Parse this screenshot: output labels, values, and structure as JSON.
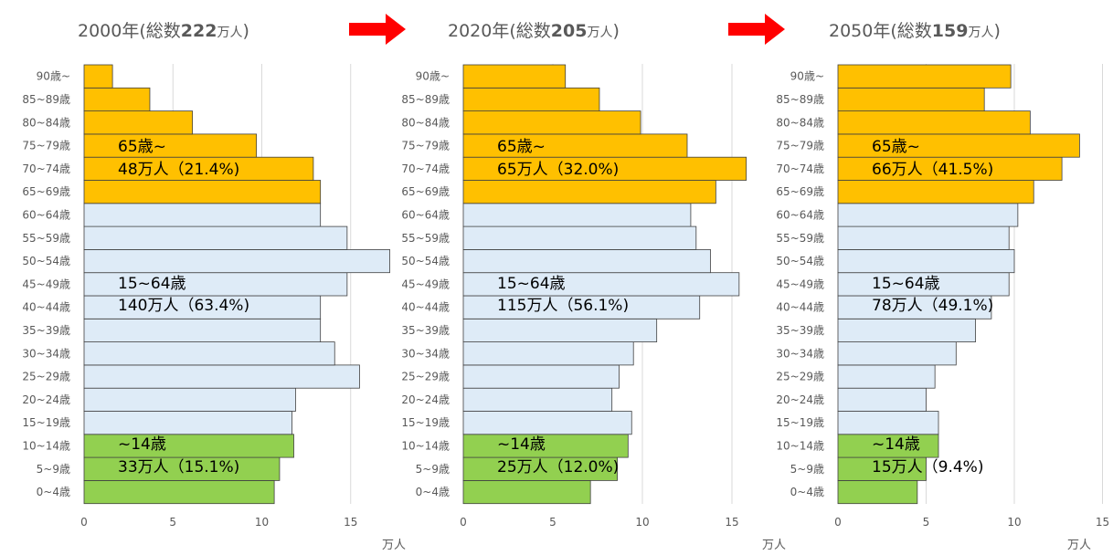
{
  "colors": {
    "elderly": "#ffc000",
    "working": "#deebf7",
    "child": "#92d050",
    "grid": "#d9d9d9",
    "arrow": "#ff0000",
    "bar_border": "#404040"
  },
  "arrow_icon": "right-arrow-icon",
  "chart_data": [
    {
      "type": "bar",
      "orientation": "horizontal",
      "title_prefix": "2000年(総数",
      "title_value": "222",
      "title_suffix_small": "万人",
      "title_suffix": ")",
      "unit_label": "万人",
      "categories": [
        "0~4歳",
        "5~9歳",
        "10~14歳",
        "15~19歳",
        "20~24歳",
        "25~29歳",
        "30~34歳",
        "35~39歳",
        "40~44歳",
        "45~49歳",
        "50~54歳",
        "55~59歳",
        "60~64歳",
        "65~69歳",
        "70~74歳",
        "75~79歳",
        "80~84歳",
        "85~89歳",
        "90歳~"
      ],
      "values": [
        10.7,
        11.0,
        11.8,
        11.7,
        11.9,
        15.5,
        14.1,
        13.3,
        13.3,
        14.8,
        17.2,
        14.8,
        13.3,
        13.3,
        12.9,
        9.7,
        6.1,
        3.7,
        1.6
      ],
      "groups": [
        "child",
        "child",
        "child",
        "working",
        "working",
        "working",
        "working",
        "working",
        "working",
        "working",
        "working",
        "working",
        "working",
        "elderly",
        "elderly",
        "elderly",
        "elderly",
        "elderly",
        "elderly"
      ],
      "xlim": [
        0,
        17
      ],
      "xticks": [
        0,
        5,
        10,
        15
      ],
      "grid": true,
      "annotations": {
        "elderly_label": "65歳~",
        "elderly_value": "48万人（21.4%)",
        "working_label": "15~64歳",
        "working_value": "140万人（63.4%)",
        "child_label": "~14歳",
        "child_value": "33万人（15.1%)"
      }
    },
    {
      "type": "bar",
      "orientation": "horizontal",
      "title_prefix": "2020年(総数",
      "title_value": "205",
      "title_suffix_small": "万人",
      "title_suffix": ")",
      "unit_label": "万人",
      "categories": [
        "0~4歳",
        "5~9歳",
        "10~14歳",
        "15~19歳",
        "20~24歳",
        "25~29歳",
        "30~34歳",
        "35~39歳",
        "40~44歳",
        "45~49歳",
        "50~54歳",
        "55~59歳",
        "60~64歳",
        "65~69歳",
        "70~74歳",
        "75~79歳",
        "80~84歳",
        "85~89歳",
        "90歳~"
      ],
      "values": [
        7.1,
        8.6,
        9.2,
        9.4,
        8.3,
        8.7,
        9.5,
        10.8,
        13.2,
        15.4,
        13.8,
        13.0,
        12.7,
        14.1,
        15.8,
        12.5,
        9.9,
        7.6,
        5.7
      ],
      "groups": [
        "child",
        "child",
        "child",
        "working",
        "working",
        "working",
        "working",
        "working",
        "working",
        "working",
        "working",
        "working",
        "working",
        "elderly",
        "elderly",
        "elderly",
        "elderly",
        "elderly",
        "elderly"
      ],
      "xlim": [
        0,
        16
      ],
      "xticks": [
        0,
        5,
        10,
        15
      ],
      "grid": true,
      "annotations": {
        "elderly_label": "65歳~",
        "elderly_value": "65万人（32.0%)",
        "working_label": "15~64歳",
        "working_value": "115万人（56.1%)",
        "child_label": "~14歳",
        "child_value": "25万人（12.0%)"
      }
    },
    {
      "type": "bar",
      "orientation": "horizontal",
      "title_prefix": "2050年(総数",
      "title_value": "159",
      "title_suffix_small": "万人",
      "title_suffix": ")",
      "unit_label": "万人",
      "categories": [
        "0~4歳",
        "5~9歳",
        "10~14歳",
        "15~19歳",
        "20~24歳",
        "25~29歳",
        "30~34歳",
        "35~39歳",
        "40~44歳",
        "45~49歳",
        "50~54歳",
        "55~59歳",
        "60~64歳",
        "65~69歳",
        "70~74歳",
        "75~79歳",
        "80~84歳",
        "85~89歳",
        "90歳~"
      ],
      "values": [
        4.5,
        5.0,
        5.7,
        5.7,
        5.0,
        5.5,
        6.7,
        7.8,
        8.7,
        9.7,
        10.0,
        9.7,
        10.2,
        11.1,
        12.7,
        13.7,
        10.9,
        8.3,
        9.8
      ],
      "groups": [
        "child",
        "child",
        "child",
        "working",
        "working",
        "working",
        "working",
        "working",
        "working",
        "working",
        "working",
        "working",
        "working",
        "elderly",
        "elderly",
        "elderly",
        "elderly",
        "elderly",
        "elderly"
      ],
      "xlim": [
        0,
        15
      ],
      "xticks": [
        0,
        5,
        10,
        15
      ],
      "grid": true,
      "annotations": {
        "elderly_label": "65歳~",
        "elderly_value": "66万人（41.5%)",
        "working_label": "15~64歳",
        "working_value": "78万人（49.1%)",
        "child_label": "~14歳",
        "child_value": "15万人（9.4%)"
      }
    }
  ]
}
